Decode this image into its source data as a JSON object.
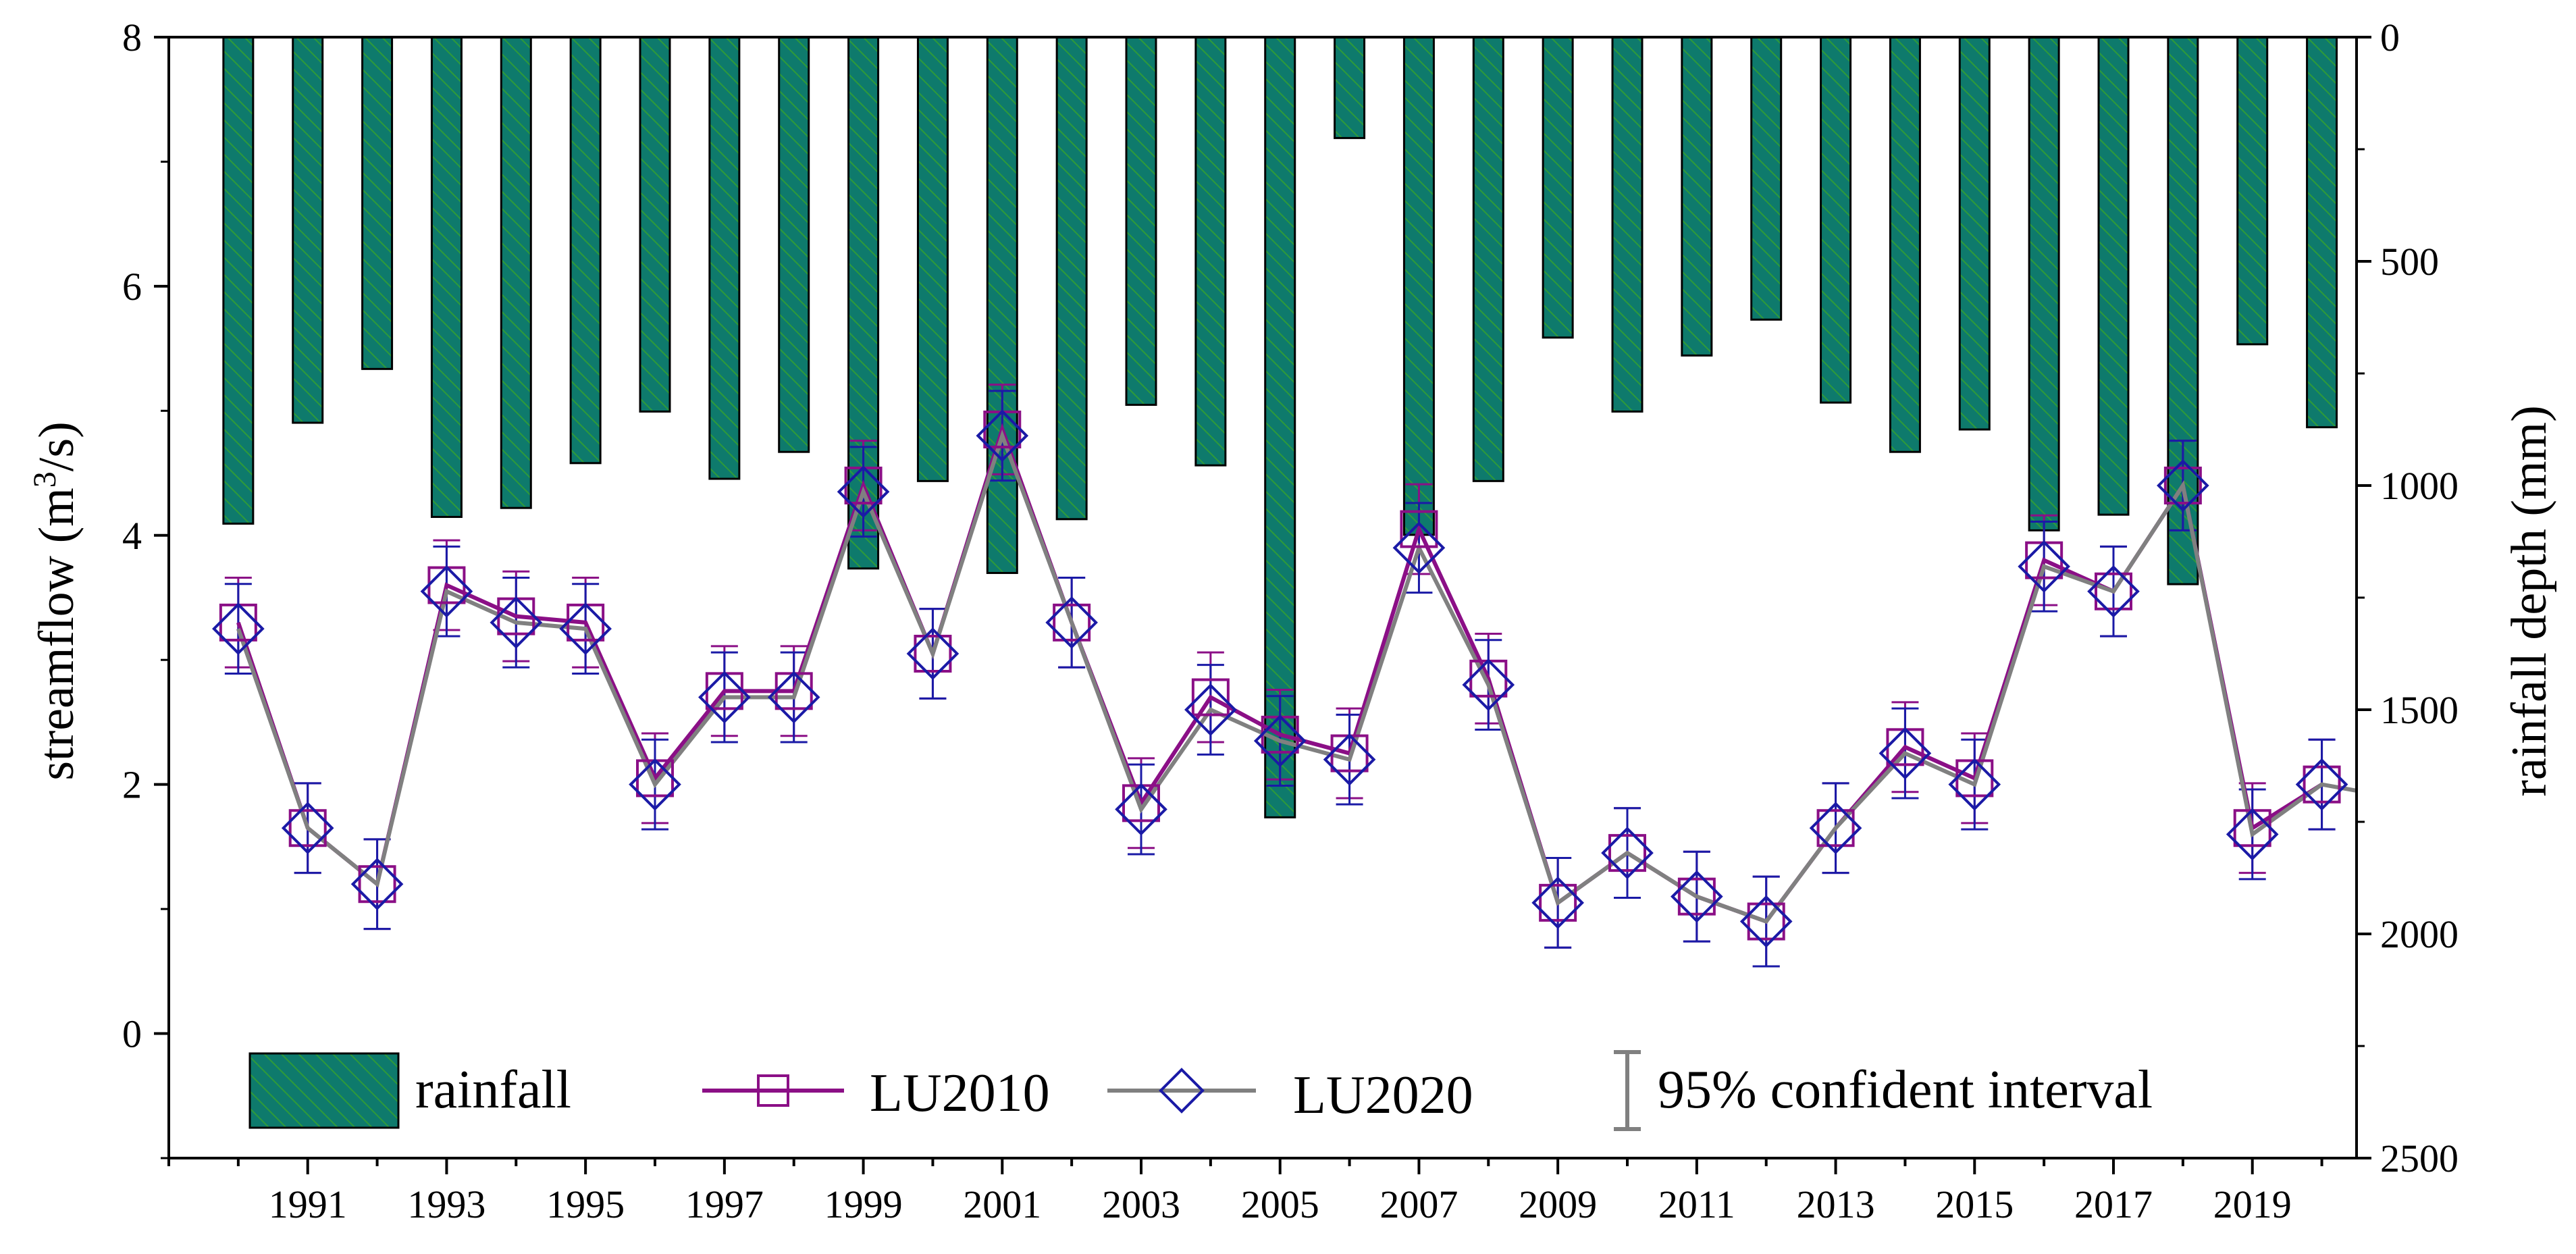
{
  "chart_data": {
    "type": "bar+line",
    "x": [
      1990,
      1991,
      1992,
      1993,
      1994,
      1995,
      1996,
      1997,
      1998,
      1999,
      2000,
      2001,
      2002,
      2003,
      2004,
      2005,
      2006,
      2007,
      2008,
      2009,
      2010,
      2011,
      2012,
      2013,
      2014,
      2015,
      2016,
      2017,
      2018,
      2019,
      2020
    ],
    "xlim": [
      1989,
      2020.5
    ],
    "x_tick_labels": [
      "1991",
      "1993",
      "1995",
      "1997",
      "1999",
      "2001",
      "2003",
      "2005",
      "2007",
      "2009",
      "2011",
      "2013",
      "2015",
      "2017",
      "2019"
    ],
    "left_axis": {
      "label_prefix": "streamflow (m",
      "label_superscript": "3",
      "label_suffix": "/s)",
      "ylim": [
        -1,
        8
      ],
      "tick_labels": [
        "0",
        "2",
        "4",
        "6",
        "8"
      ]
    },
    "right_axis": {
      "label": "rainfall depth (mm)",
      "ylim": [
        0,
        2500
      ],
      "inverted": true,
      "tick_labels": [
        "0",
        "500",
        "1000",
        "1500",
        "2000",
        "2500"
      ]
    },
    "series": [
      {
        "name": "rainfall",
        "kind": "bar",
        "axis": "right",
        "color": "#0E7A6C",
        "hatch": "#2E9A3A",
        "values": [
          1085,
          860,
          740,
          1070,
          1050,
          950,
          835,
          985,
          925,
          1185,
          990,
          1195,
          1075,
          820,
          955,
          1740,
          225,
          1110,
          990,
          670,
          835,
          710,
          630,
          815,
          925,
          875,
          1100,
          1065,
          1220,
          685,
          870
        ]
      },
      {
        "name": "LU2010",
        "kind": "line",
        "axis": "left",
        "color": "#8B0F86",
        "marker": "square",
        "values": [
          3.3,
          1.65,
          1.2,
          3.6,
          3.35,
          3.3,
          2.05,
          2.75,
          2.75,
          4.4,
          3.05,
          4.85,
          3.3,
          1.85,
          2.7,
          2.4,
          2.25,
          4.05,
          2.85,
          1.05,
          1.45,
          1.1,
          0.9,
          1.65,
          2.3,
          2.05,
          3.8,
          3.55,
          4.4,
          1.65,
          2.0
        ],
        "ci_halfwidth": 0.36
      },
      {
        "name": "LU2020",
        "kind": "line",
        "axis": "left",
        "color": "#808080",
        "marker": "diamond",
        "marker_color": "#1A1AA6",
        "values": [
          3.25,
          1.65,
          1.2,
          3.55,
          3.3,
          3.25,
          2.0,
          2.7,
          2.7,
          4.35,
          3.05,
          4.8,
          3.3,
          1.8,
          2.6,
          2.35,
          2.2,
          3.9,
          2.8,
          1.05,
          1.45,
          1.1,
          0.9,
          1.65,
          2.25,
          2.0,
          3.75,
          3.55,
          4.4,
          1.6,
          2.0
        ],
        "ci_halfwidth": 0.36,
        "tail_value": 1.95
      }
    ],
    "legend": {
      "placement": "bottom",
      "items": [
        "rainfall",
        "LU2010",
        "LU2020",
        "95% confident interval"
      ]
    }
  }
}
